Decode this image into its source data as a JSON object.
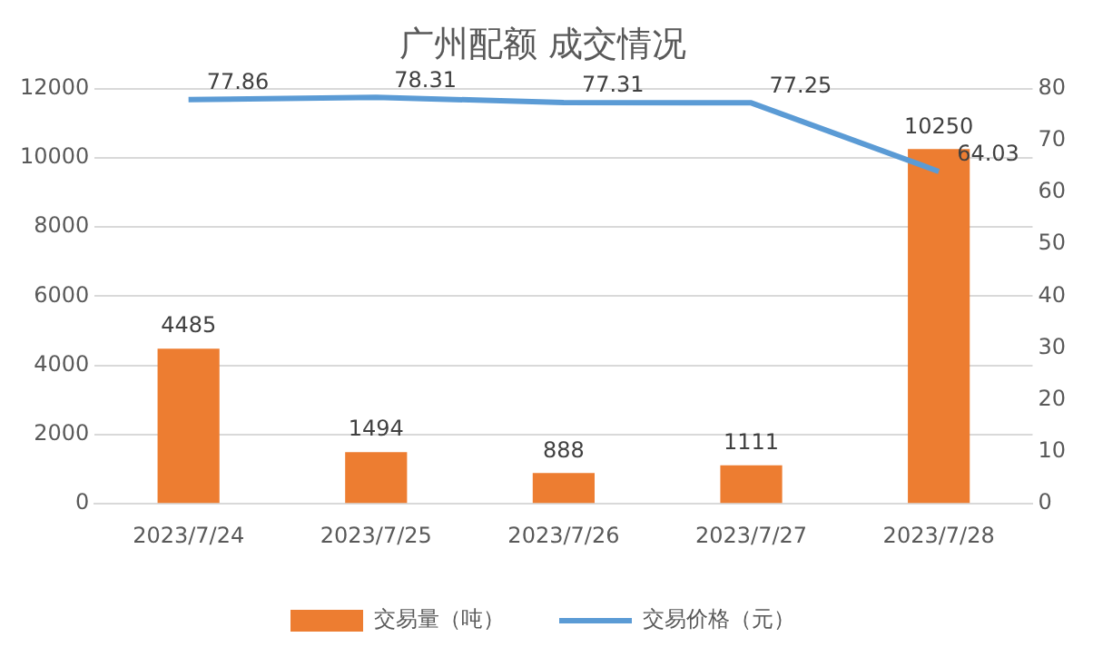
{
  "chart_data": {
    "type": "bar",
    "title": "广州配额 成交情况",
    "categories": [
      "2023/7/24",
      "2023/7/25",
      "2023/7/26",
      "2023/7/27",
      "2023/7/28"
    ],
    "series": [
      {
        "name": "交易量（吨）",
        "color": "#ed7d31",
        "values": [
          4485,
          1494,
          888,
          1111,
          10250
        ]
      },
      {
        "name": "交易价格（元）",
        "type": "line",
        "axis": "y2",
        "color": "#5b9bd5",
        "values": [
          77.86,
          78.31,
          77.31,
          77.25,
          64.03
        ]
      }
    ],
    "ylim": [
      0,
      12000
    ],
    "yticks": [
      0,
      2000,
      4000,
      6000,
      8000,
      10000,
      12000
    ],
    "y2lim": [
      0,
      80
    ],
    "y2ticks": [
      0,
      10,
      20,
      30,
      40,
      50,
      60,
      70,
      80
    ],
    "grid": "y",
    "legend": "bottom",
    "marker": "none",
    "line_style": "solid",
    "data_labels": true
  }
}
